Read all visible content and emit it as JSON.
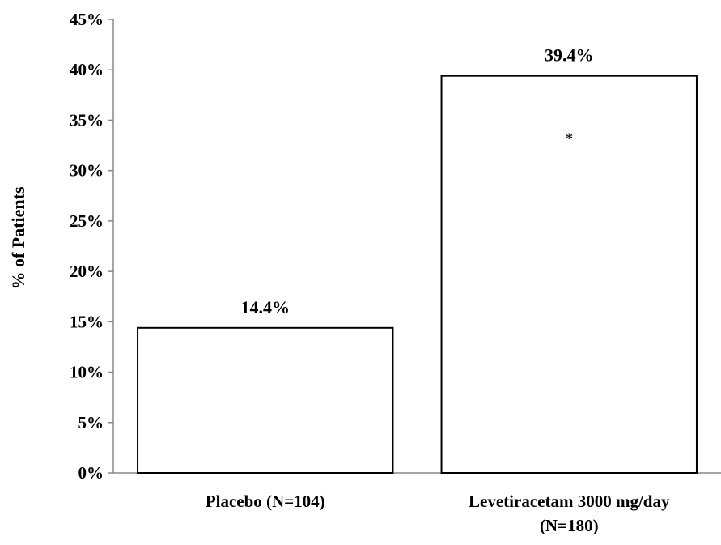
{
  "chart_data": {
    "type": "bar",
    "categories": [
      [
        "Placebo (N=104)"
      ],
      [
        "Levetiracetam 3000 mg/day",
        "(N=180)"
      ]
    ],
    "values": [
      14.4,
      39.4
    ],
    "value_labels": [
      "14.4%",
      "39.4%"
    ],
    "annotations": [
      "",
      "*"
    ],
    "ylabel": "% of Patients",
    "ylim": [
      0,
      45
    ],
    "yticks": [
      0,
      5,
      10,
      15,
      20,
      25,
      30,
      35,
      40,
      45
    ],
    "ytick_labels": [
      "0%",
      "5%",
      "10%",
      "15%",
      "20%",
      "25%",
      "30%",
      "35%",
      "40%",
      "45%"
    ],
    "bar_fill": "#ffffff",
    "bar_stroke": "#000000",
    "grid": false,
    "legend": "none"
  }
}
